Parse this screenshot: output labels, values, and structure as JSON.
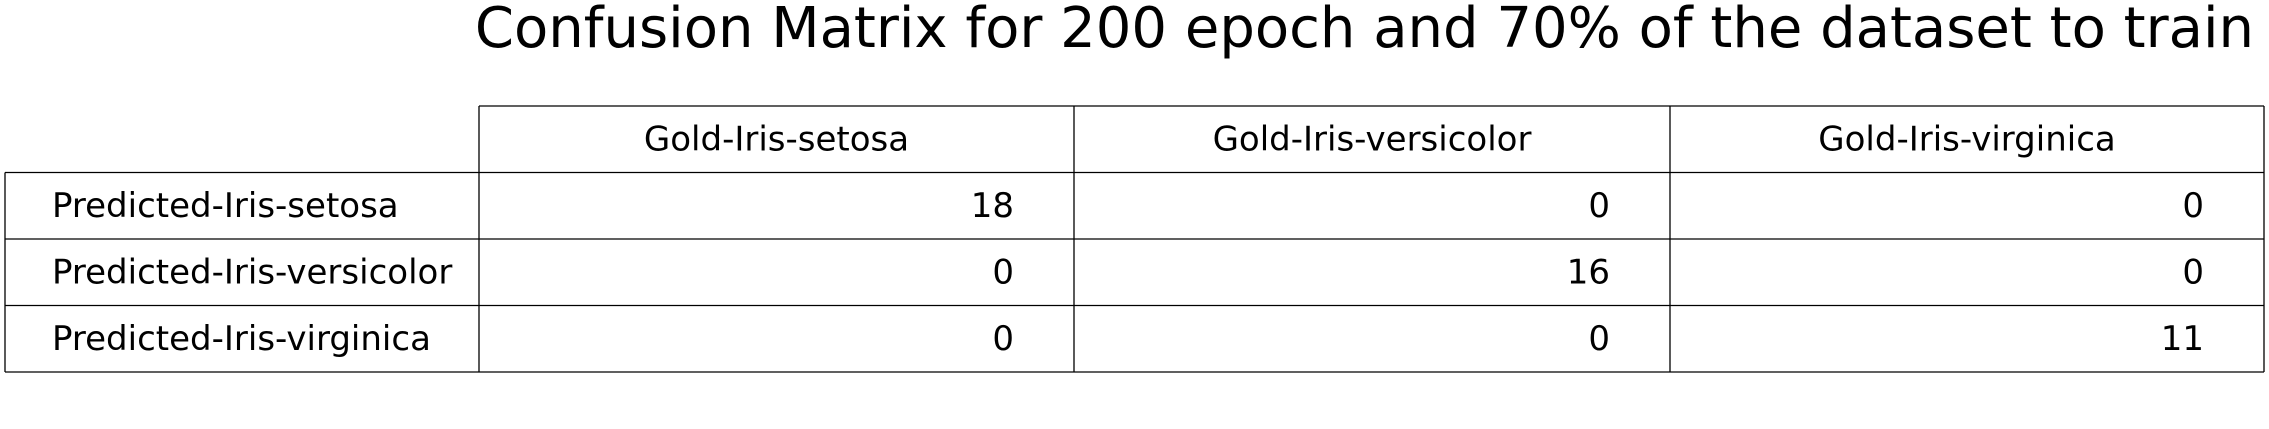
{
  "chart_data": {
    "type": "table",
    "title": "Confusion Matrix for 200 epoch and 70% of the dataset to train",
    "column_headers": [
      "Gold-Iris-setosa",
      "Gold-Iris-versicolor",
      "Gold-Iris-virginica"
    ],
    "row_headers": [
      "Predicted-Iris-setosa",
      "Predicted-Iris-versicolor",
      "Predicted-Iris-virginica"
    ],
    "values": [
      [
        18,
        0,
        0
      ],
      [
        0,
        16,
        0
      ],
      [
        0,
        0,
        11
      ]
    ]
  }
}
